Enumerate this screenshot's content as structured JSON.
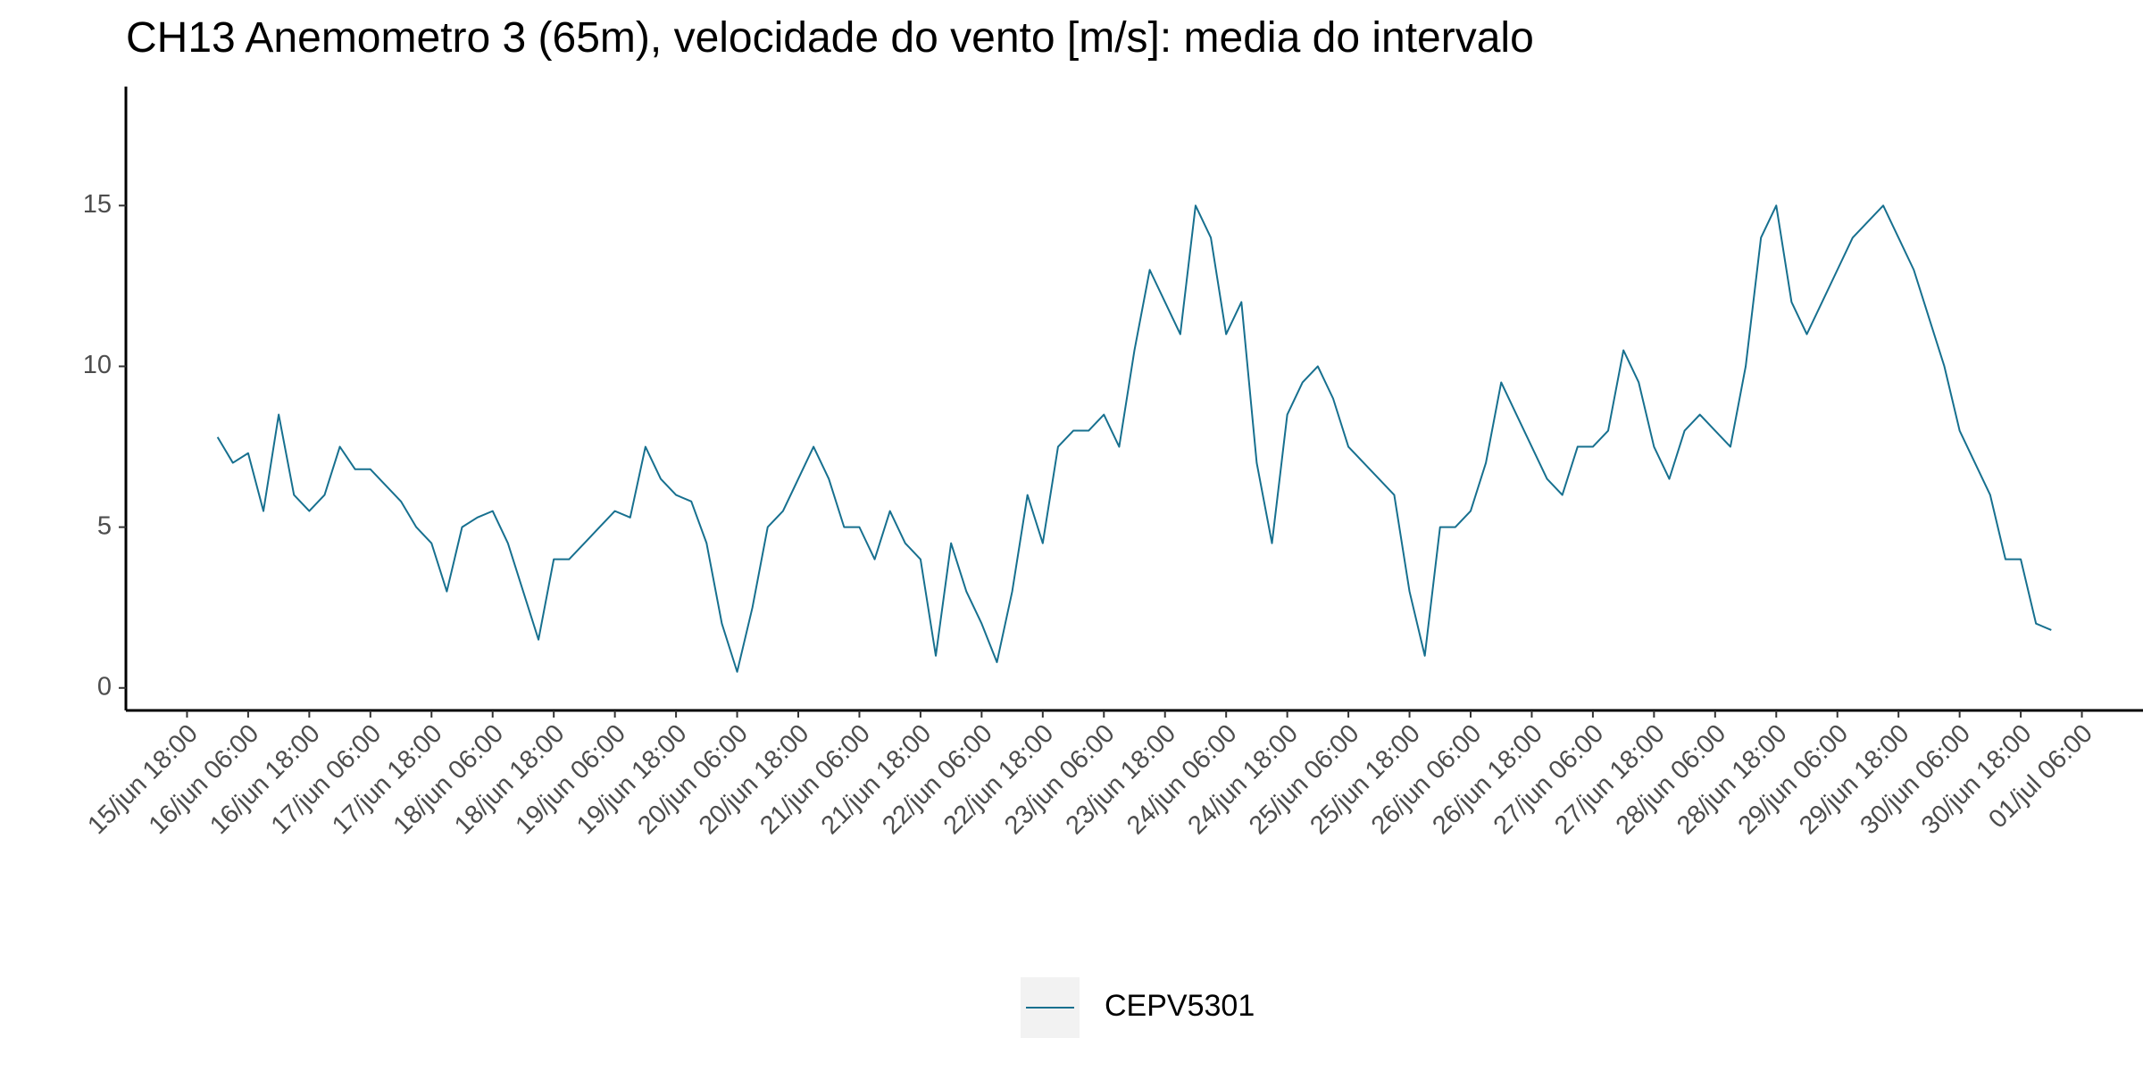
{
  "chart_data": {
    "type": "line",
    "title": "CH13 Anemometro 3 (65m), velocidade do vento [m/s]: media do intervalo",
    "x": [
      "16/jun 00:00",
      "16/jun 03:00",
      "16/jun 06:00",
      "16/jun 09:00",
      "16/jun 12:00",
      "16/jun 15:00",
      "16/jun 18:00",
      "16/jun 21:00",
      "17/jun 00:00",
      "17/jun 03:00",
      "17/jun 06:00",
      "17/jun 09:00",
      "17/jun 12:00",
      "17/jun 15:00",
      "17/jun 18:00",
      "17/jun 21:00",
      "18/jun 00:00",
      "18/jun 03:00",
      "18/jun 06:00",
      "18/jun 09:00",
      "18/jun 12:00",
      "18/jun 15:00",
      "18/jun 18:00",
      "18/jun 21:00",
      "19/jun 00:00",
      "19/jun 03:00",
      "19/jun 06:00",
      "19/jun 09:00",
      "19/jun 12:00",
      "19/jun 15:00",
      "19/jun 18:00",
      "19/jun 21:00",
      "20/jun 00:00",
      "20/jun 03:00",
      "20/jun 06:00",
      "20/jun 09:00",
      "20/jun 12:00",
      "20/jun 15:00",
      "20/jun 18:00",
      "20/jun 21:00",
      "21/jun 00:00",
      "21/jun 03:00",
      "21/jun 06:00",
      "21/jun 09:00",
      "21/jun 12:00",
      "21/jun 15:00",
      "21/jun 18:00",
      "21/jun 21:00",
      "22/jun 00:00",
      "22/jun 03:00",
      "22/jun 06:00",
      "22/jun 09:00",
      "22/jun 12:00",
      "22/jun 15:00",
      "22/jun 18:00",
      "22/jun 21:00",
      "23/jun 00:00",
      "23/jun 03:00",
      "23/jun 06:00",
      "23/jun 09:00",
      "23/jun 12:00",
      "23/jun 15:00",
      "23/jun 18:00",
      "23/jun 21:00",
      "24/jun 00:00",
      "24/jun 03:00",
      "24/jun 06:00",
      "24/jun 09:00",
      "24/jun 12:00",
      "24/jun 15:00",
      "24/jun 18:00",
      "24/jun 21:00",
      "25/jun 00:00",
      "25/jun 03:00",
      "25/jun 06:00",
      "25/jun 09:00",
      "25/jun 12:00",
      "25/jun 15:00",
      "25/jun 18:00",
      "25/jun 21:00",
      "26/jun 00:00",
      "26/jun 03:00",
      "26/jun 06:00",
      "26/jun 09:00",
      "26/jun 12:00",
      "26/jun 15:00",
      "26/jun 18:00",
      "26/jun 21:00",
      "27/jun 00:00",
      "27/jun 03:00",
      "27/jun 06:00",
      "27/jun 09:00",
      "27/jun 12:00",
      "27/jun 15:00",
      "27/jun 18:00",
      "27/jun 21:00",
      "28/jun 00:00",
      "28/jun 03:00",
      "28/jun 06:00",
      "28/jun 09:00",
      "28/jun 12:00",
      "28/jun 15:00",
      "28/jun 18:00",
      "28/jun 21:00",
      "29/jun 00:00",
      "29/jun 03:00",
      "29/jun 06:00",
      "29/jun 09:00",
      "29/jun 12:00",
      "29/jun 15:00",
      "29/jun 18:00",
      "29/jun 21:00",
      "30/jun 00:00",
      "30/jun 03:00",
      "30/jun 06:00",
      "30/jun 09:00",
      "30/jun 12:00",
      "30/jun 15:00",
      "30/jun 18:00",
      "30/jun 21:00",
      "01/jul 00:00"
    ],
    "series": [
      {
        "name": "CEPV5301",
        "color": "#17708f",
        "values": [
          7.8,
          7.0,
          7.3,
          5.5,
          8.5,
          6.0,
          5.5,
          6.0,
          7.5,
          6.8,
          6.8,
          6.3,
          5.8,
          5.0,
          4.5,
          3.0,
          5.0,
          5.3,
          5.5,
          4.5,
          3.0,
          1.5,
          4.0,
          4.0,
          4.5,
          5.0,
          5.5,
          5.3,
          7.5,
          6.5,
          6.0,
          5.8,
          4.5,
          2.0,
          0.5,
          2.5,
          5.0,
          5.5,
          6.5,
          7.5,
          6.5,
          5.0,
          5.0,
          4.0,
          5.5,
          4.5,
          4.0,
          1.0,
          4.5,
          3.0,
          2.0,
          0.8,
          3.0,
          6.0,
          4.5,
          7.5,
          8.0,
          8.0,
          8.5,
          7.5,
          10.5,
          13.0,
          12.0,
          11.0,
          15.0,
          14.0,
          11.0,
          12.0,
          7.0,
          4.5,
          8.5,
          9.5,
          10.0,
          9.0,
          7.5,
          7.0,
          6.5,
          6.0,
          3.0,
          1.0,
          5.0,
          5.0,
          5.5,
          7.0,
          9.5,
          8.5,
          7.5,
          6.5,
          6.0,
          7.5,
          7.5,
          8.0,
          10.5,
          9.5,
          7.5,
          6.5,
          8.0,
          8.5,
          8.0,
          7.5,
          10.0,
          14.0,
          15.0,
          12.0,
          11.0,
          12.0,
          13.0,
          14.0,
          14.5,
          15.0,
          14.0,
          13.0,
          11.5,
          10.0,
          8.0,
          7.0,
          6.0,
          4.0,
          4.0,
          2.0,
          1.8
        ]
      }
    ],
    "xlim": [
      "15/jun 06:00",
      "01/jul 18:00"
    ],
    "xticks": [
      "15/jun 18:00",
      "16/jun 06:00",
      "16/jun 18:00",
      "17/jun 06:00",
      "17/jun 18:00",
      "18/jun 06:00",
      "18/jun 18:00",
      "19/jun 06:00",
      "19/jun 18:00",
      "20/jun 06:00",
      "20/jun 18:00",
      "21/jun 06:00",
      "21/jun 18:00",
      "22/jun 06:00",
      "22/jun 18:00",
      "23/jun 06:00",
      "23/jun 18:00",
      "24/jun 06:00",
      "24/jun 18:00",
      "25/jun 06:00",
      "25/jun 18:00",
      "26/jun 06:00",
      "26/jun 18:00",
      "27/jun 06:00",
      "27/jun 18:00",
      "28/jun 06:00",
      "28/jun 18:00",
      "29/jun 06:00",
      "29/jun 18:00",
      "30/jun 06:00",
      "30/jun 18:00",
      "01/jul 06:00"
    ],
    "ylim": [
      -0.7,
      18.7
    ],
    "yticks": [
      0,
      5,
      10,
      15
    ],
    "legend": "bottom"
  }
}
